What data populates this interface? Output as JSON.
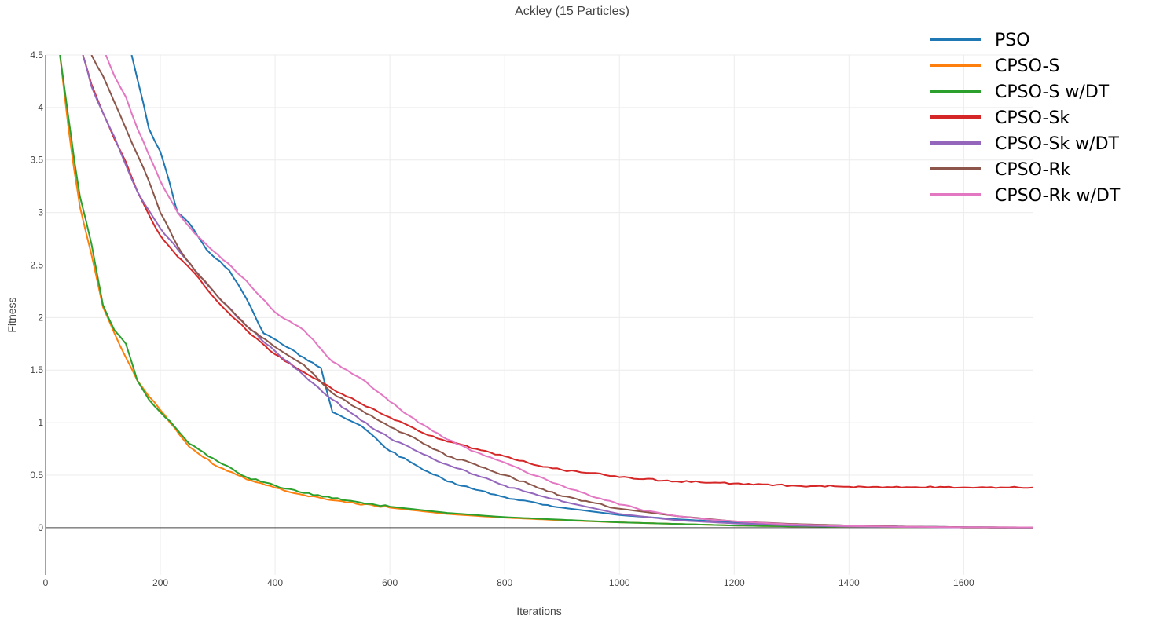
{
  "chart_data": {
    "type": "line",
    "title": "Ackley (15 Particles)",
    "xlabel": "Iterations",
    "ylabel": "Fitness",
    "xlim": [
      0,
      1720
    ],
    "ylim": [
      -0.45,
      4.5
    ],
    "xticks": [
      0,
      200,
      400,
      600,
      800,
      1000,
      1200,
      1400,
      1600
    ],
    "xtick_labels": [
      "0",
      "200",
      "400",
      "600",
      "800",
      "1000",
      "1200",
      "1400",
      "1600"
    ],
    "yticks": [
      0,
      0.5,
      1,
      1.5,
      2,
      2.5,
      3,
      3.5,
      4,
      4.5
    ],
    "ytick_labels": [
      "0",
      "0.5",
      "1",
      "1.5",
      "2",
      "2.5",
      "3",
      "3.5",
      "4",
      "4.5"
    ],
    "grid": true,
    "legend": "top-right",
    "series": [
      {
        "name": "PSO",
        "color": "#1f77b4",
        "x": [
          150,
          170,
          180,
          200,
          210,
          220,
          230,
          250,
          280,
          320,
          350,
          380,
          420,
          450,
          480,
          500,
          550,
          600,
          650,
          700,
          750,
          800,
          900,
          1000,
          1100,
          1200,
          1300,
          1400,
          1500,
          1600,
          1720
        ],
        "y": [
          4.5,
          4.05,
          3.8,
          3.58,
          3.4,
          3.2,
          3.0,
          2.9,
          2.65,
          2.45,
          2.18,
          1.85,
          1.72,
          1.62,
          1.52,
          1.1,
          0.97,
          0.73,
          0.58,
          0.44,
          0.36,
          0.29,
          0.19,
          0.12,
          0.08,
          0.05,
          0.03,
          0.02,
          0.01,
          0.005,
          0.0
        ]
      },
      {
        "name": "CPSO-S",
        "color": "#ff7f0e",
        "x": [
          25,
          40,
          50,
          60,
          80,
          100,
          120,
          140,
          160,
          180,
          200,
          225,
          250,
          300,
          350,
          400,
          450,
          500,
          600,
          700,
          800,
          900,
          1000,
          1100,
          1200,
          1300,
          1400,
          1500,
          1600,
          1720
        ],
        "y": [
          4.5,
          3.8,
          3.4,
          3.05,
          2.6,
          2.1,
          1.85,
          1.62,
          1.4,
          1.25,
          1.12,
          0.95,
          0.77,
          0.58,
          0.46,
          0.38,
          0.31,
          0.26,
          0.19,
          0.13,
          0.095,
          0.07,
          0.05,
          0.035,
          0.02,
          0.012,
          0.008,
          0.004,
          0.002,
          0.0
        ]
      },
      {
        "name": "CPSO-S w/DT",
        "color": "#2ca02c",
        "x": [
          25,
          40,
          50,
          60,
          80,
          100,
          120,
          140,
          160,
          180,
          200,
          225,
          250,
          300,
          350,
          400,
          450,
          500,
          600,
          700,
          800,
          900,
          1000,
          1100,
          1200,
          1300,
          1400,
          1500,
          1600,
          1720
        ],
        "y": [
          4.5,
          3.9,
          3.5,
          3.15,
          2.7,
          2.12,
          1.88,
          1.75,
          1.4,
          1.22,
          1.1,
          0.96,
          0.8,
          0.63,
          0.48,
          0.4,
          0.33,
          0.28,
          0.2,
          0.14,
          0.1,
          0.075,
          0.05,
          0.035,
          0.02,
          0.012,
          0.008,
          0.004,
          0.002,
          0.0
        ]
      },
      {
        "name": "CPSO-Sk",
        "color": "#d62728",
        "x": [
          65,
          80,
          100,
          120,
          140,
          160,
          180,
          200,
          230,
          260,
          300,
          350,
          400,
          450,
          500,
          550,
          600,
          650,
          700,
          750,
          800,
          850,
          900,
          950,
          1000,
          1100,
          1200,
          1300,
          1400,
          1500,
          1600,
          1720
        ],
        "y": [
          4.5,
          4.22,
          3.95,
          3.7,
          3.48,
          3.2,
          2.98,
          2.78,
          2.58,
          2.42,
          2.15,
          1.88,
          1.65,
          1.48,
          1.32,
          1.18,
          1.05,
          0.92,
          0.82,
          0.75,
          0.68,
          0.6,
          0.55,
          0.52,
          0.48,
          0.44,
          0.42,
          0.4,
          0.39,
          0.385,
          0.383,
          0.382
        ]
      },
      {
        "name": "CPSO-Sk w/DT",
        "color": "#9467bd",
        "x": [
          65,
          80,
          100,
          120,
          140,
          160,
          180,
          200,
          230,
          260,
          300,
          350,
          400,
          450,
          500,
          550,
          600,
          650,
          700,
          750,
          800,
          900,
          1000,
          1100,
          1200,
          1300,
          1400,
          1500,
          1600,
          1720
        ],
        "y": [
          4.5,
          4.2,
          3.95,
          3.72,
          3.45,
          3.2,
          3.02,
          2.85,
          2.65,
          2.45,
          2.2,
          1.92,
          1.68,
          1.45,
          1.22,
          1.02,
          0.85,
          0.72,
          0.6,
          0.5,
          0.4,
          0.25,
          0.13,
          0.07,
          0.04,
          0.02,
          0.01,
          0.005,
          0.002,
          0.0
        ]
      },
      {
        "name": "CPSO-Rk",
        "color": "#8c564b",
        "x": [
          80,
          100,
          120,
          140,
          160,
          180,
          200,
          230,
          260,
          300,
          350,
          400,
          450,
          500,
          550,
          600,
          650,
          700,
          750,
          800,
          850,
          900,
          1000,
          1100,
          1200,
          1300,
          1400,
          1500,
          1600,
          1720
        ],
        "y": [
          4.5,
          4.3,
          4.05,
          3.8,
          3.55,
          3.3,
          3.0,
          2.68,
          2.45,
          2.2,
          1.92,
          1.72,
          1.55,
          1.28,
          1.12,
          0.96,
          0.83,
          0.68,
          0.6,
          0.5,
          0.4,
          0.3,
          0.18,
          0.11,
          0.06,
          0.035,
          0.02,
          0.01,
          0.005,
          0.002
        ]
      },
      {
        "name": "CPSO-Rk w/DT",
        "color": "#e377c2",
        "x": [
          105,
          120,
          140,
          160,
          180,
          200,
          230,
          260,
          300,
          350,
          400,
          450,
          500,
          550,
          600,
          650,
          700,
          750,
          800,
          850,
          900,
          950,
          1000,
          1050,
          1100,
          1150,
          1200,
          1300,
          1400,
          1500,
          1600,
          1720
        ],
        "y": [
          4.5,
          4.3,
          4.1,
          3.8,
          3.55,
          3.3,
          3.0,
          2.8,
          2.6,
          2.35,
          2.05,
          1.88,
          1.58,
          1.42,
          1.2,
          1.0,
          0.84,
          0.72,
          0.62,
          0.5,
          0.4,
          0.3,
          0.22,
          0.16,
          0.11,
          0.08,
          0.06,
          0.03,
          0.015,
          0.008,
          0.004,
          0.002
        ]
      }
    ]
  }
}
